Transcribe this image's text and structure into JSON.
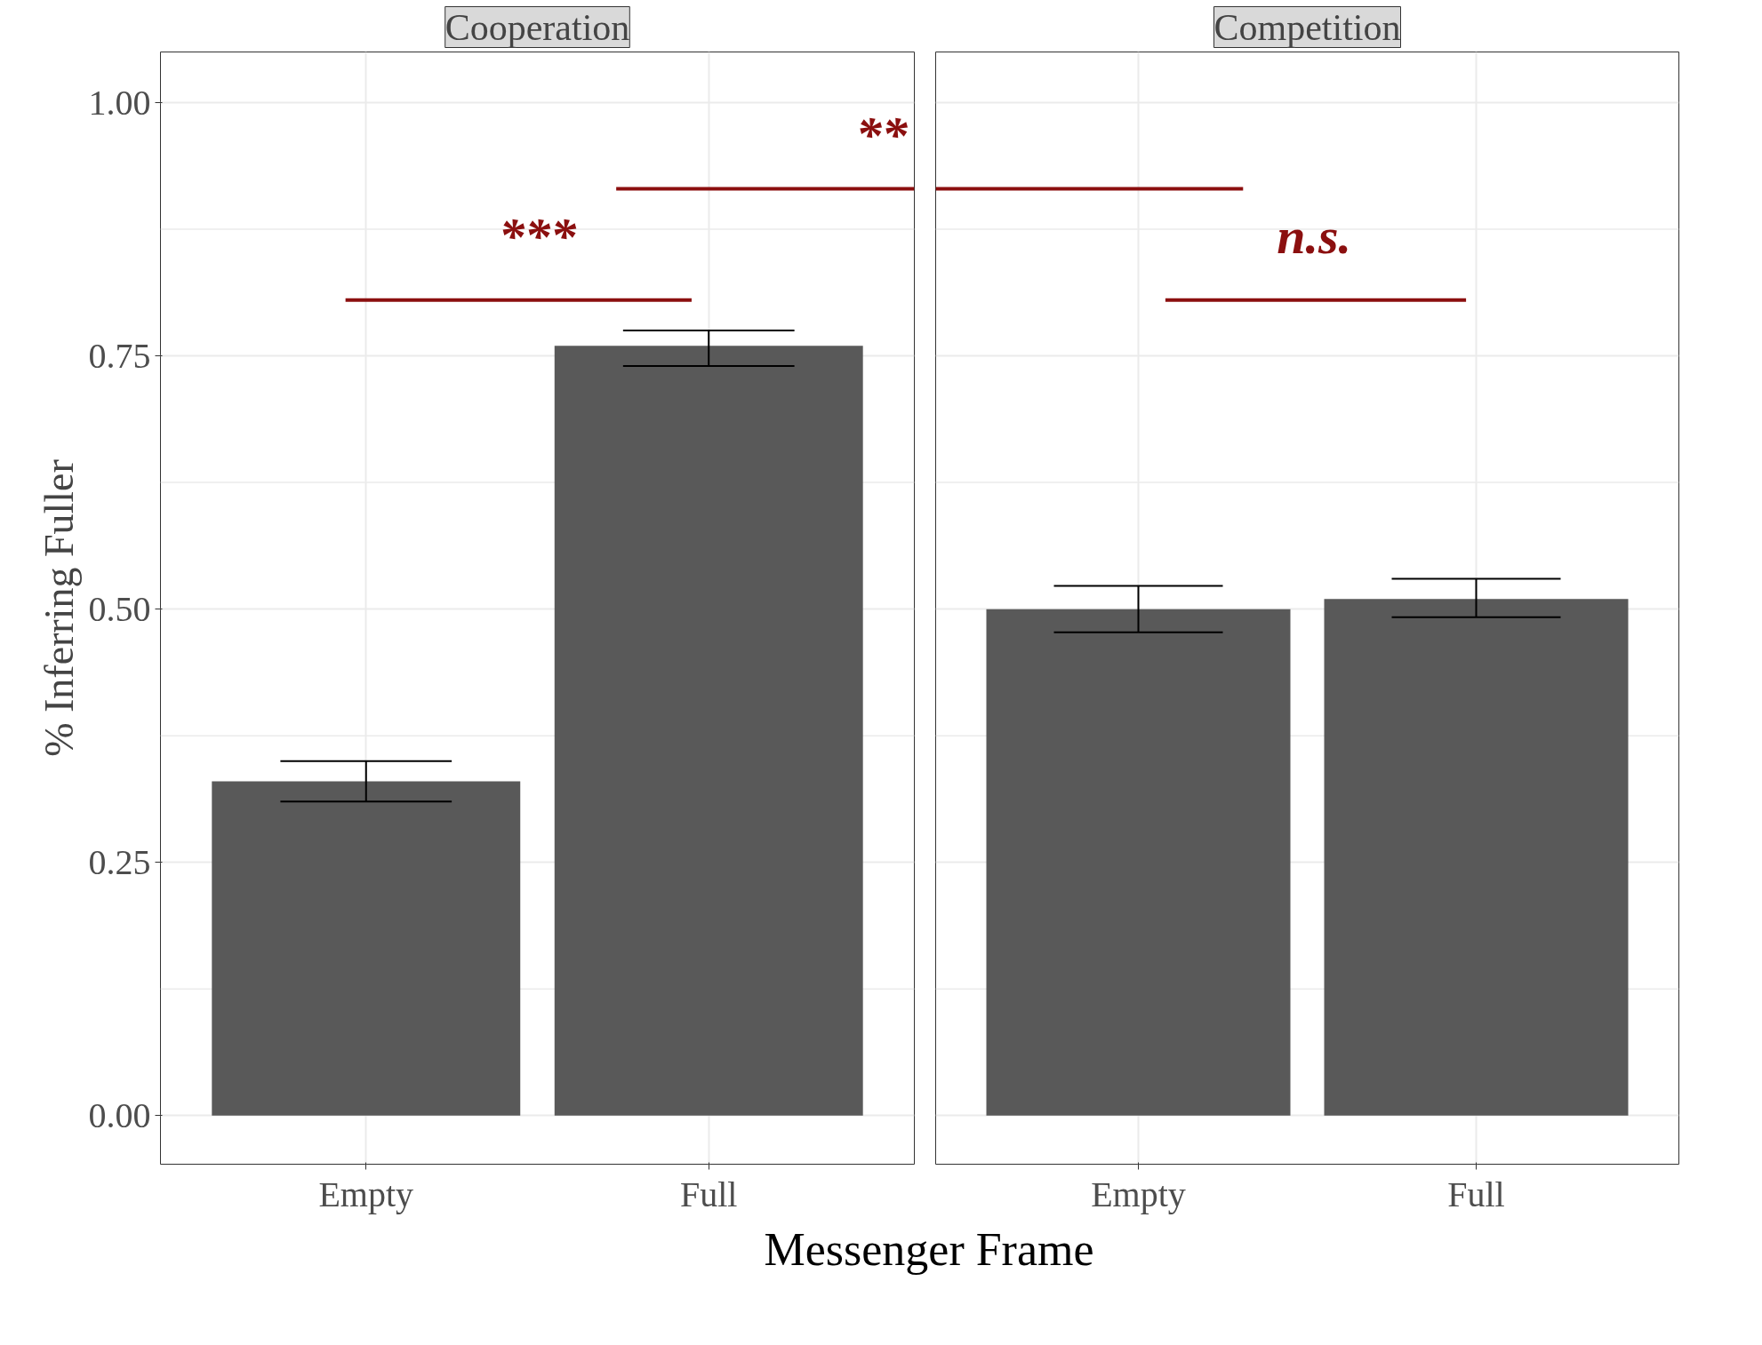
{
  "chart_data": [
    {
      "type": "bar",
      "title": "Cooperation",
      "xlabel": "Messenger Frame",
      "ylabel": "% Inferring Fuller",
      "categories": [
        "Empty",
        "Full"
      ],
      "values": [
        0.33,
        0.76
      ],
      "errors": [
        [
          0.31,
          0.35
        ],
        [
          0.74,
          0.775
        ]
      ],
      "color": "#595959",
      "ylim": [
        -0.048,
        1.05
      ],
      "yticks": [
        {
          "value": 0,
          "label": "0.00"
        },
        {
          "value": 0.25,
          "label": "0.25"
        },
        {
          "value": 0.5,
          "label": "0.50"
        },
        {
          "value": 0.75,
          "label": "0.75"
        },
        {
          "value": 1,
          "label": "1.00"
        }
      ],
      "grid": true,
      "annotations": [
        "***",
        "**"
      ]
    },
    {
      "type": "bar",
      "title": "Competition",
      "categories": [
        "Empty",
        "Full"
      ],
      "values": [
        0.5,
        0.51
      ],
      "errors": [
        [
          0.477,
          0.523
        ],
        [
          0.492,
          0.53
        ]
      ],
      "color": "#595959",
      "ylim": [
        -0.048,
        1.05
      ],
      "yticks": [
        0,
        0.25,
        0.5,
        0.75,
        1
      ],
      "grid": true,
      "tick_labels": "x",
      "annotations": [
        "n.s."
      ]
    }
  ]
}
